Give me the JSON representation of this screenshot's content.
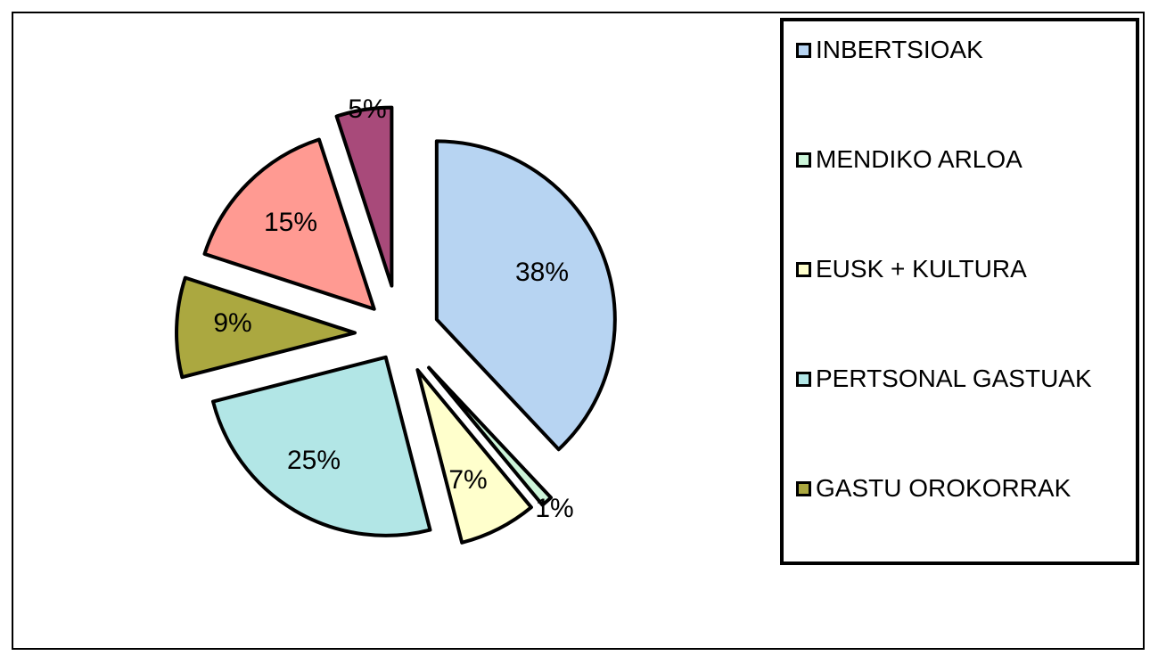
{
  "chart_data": {
    "type": "pie",
    "title": "",
    "slices": [
      {
        "label": "INBERTSIOAK",
        "value": 38,
        "data_label": "38%",
        "color": "#B7D4F2"
      },
      {
        "label": "MENDIKO ARLOA",
        "value": 1,
        "data_label": "1%",
        "color": "#CCF5D9"
      },
      {
        "label": "EUSK + KULTURA",
        "value": 7,
        "data_label": "7%",
        "color": "#FFFFCC"
      },
      {
        "label": "PERTSONAL GASTUAK",
        "value": 25,
        "data_label": "25%",
        "color": "#B2E6E6"
      },
      {
        "label": "GASTU OROKORRAK",
        "value": 9,
        "data_label": "9%",
        "color": "#ABA840"
      },
      {
        "label": "",
        "value": 15,
        "data_label": "15%",
        "color": "#FF9A92"
      },
      {
        "label": "",
        "value": 5,
        "data_label": "5%",
        "color": "#A84A7A"
      }
    ],
    "legend": {
      "placement": "right",
      "entries": [
        "INBERTSIOAK",
        "MENDIKO ARLOA",
        "EUSK + KULTURA",
        "PERTSONAL GASTUAK",
        "GASTU OROKORRAK"
      ]
    }
  }
}
